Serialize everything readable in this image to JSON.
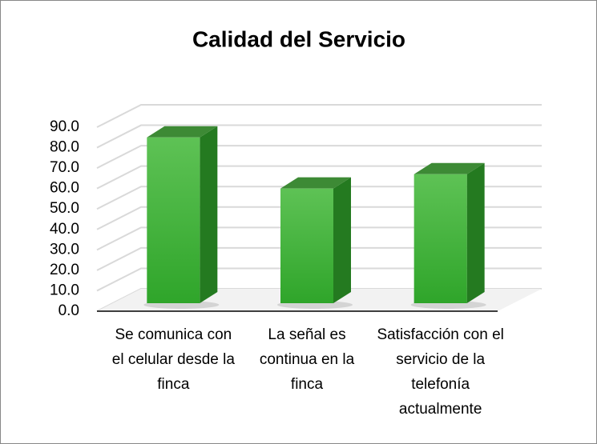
{
  "chart_data": {
    "type": "bar3d",
    "title": "Calidad del Servicio",
    "categories": [
      "Se comunica con el celular desde la  finca",
      "La señal es continua  en la finca",
      "Satisfacción con el servicio de la telefonía actualmente"
    ],
    "values": [
      85,
      60,
      67
    ],
    "color": "#3cb034",
    "ylim": [
      0,
      90
    ],
    "yticks": [
      {
        "value": 0,
        "label": "0.0"
      },
      {
        "value": 10,
        "label": "10.0"
      },
      {
        "value": 20,
        "label": "20.0"
      },
      {
        "value": 30,
        "label": "30.0"
      },
      {
        "value": 40,
        "label": "40.0"
      },
      {
        "value": 50,
        "label": "50.0"
      },
      {
        "value": 60,
        "label": "60.0"
      },
      {
        "value": 70,
        "label": "70.0"
      },
      {
        "value": 80,
        "label": "80.0"
      },
      {
        "value": 90,
        "label": "90.0"
      }
    ],
    "grid": true
  }
}
